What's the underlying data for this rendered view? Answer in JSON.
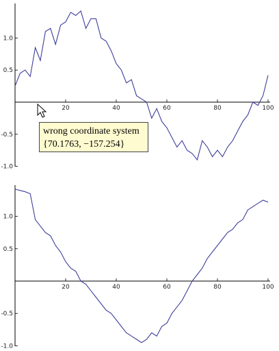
{
  "tooltip": {
    "line1": "wrong coordinate system",
    "line2": "{70.1763, −157.254}"
  },
  "cursor_icon": "arrow-pointer-icon",
  "colors": {
    "series": "#3d3d99",
    "axis": "#000000"
  },
  "chart_data": [
    {
      "type": "line",
      "xlim": [
        0,
        100
      ],
      "ylim": [
        -1.0,
        1.5
      ],
      "x_ticks": [
        20,
        40,
        60,
        80,
        100
      ],
      "x_tick_labels": [
        "20",
        "40",
        "60",
        "80",
        "100"
      ],
      "y_ticks": [
        1.0,
        0.5,
        -0.5,
        -1.0
      ],
      "y_tick_labels": [
        "1.0",
        "0.5",
        "-0.5",
        "-1.0"
      ],
      "series": [
        {
          "x": [
            0,
            2,
            4,
            6,
            8,
            10,
            12,
            14,
            16,
            18,
            20,
            22,
            24,
            26,
            28,
            30,
            32,
            34,
            36,
            38,
            40,
            42,
            44,
            46,
            48,
            50,
            52,
            54,
            56,
            58,
            60,
            62,
            64,
            66,
            68,
            70,
            72,
            74,
            76,
            78,
            80,
            82,
            84,
            86,
            88,
            90,
            92,
            94,
            96,
            98,
            100
          ],
          "y": [
            0.25,
            0.45,
            0.5,
            0.4,
            0.85,
            0.65,
            1.1,
            1.15,
            0.9,
            1.2,
            1.25,
            1.4,
            1.35,
            1.42,
            1.15,
            1.3,
            1.3,
            1.0,
            0.95,
            0.8,
            0.6,
            0.5,
            0.3,
            0.35,
            0.1,
            0.05,
            0.0,
            -0.25,
            -0.1,
            -0.3,
            -0.4,
            -0.55,
            -0.7,
            -0.6,
            -0.75,
            -0.8,
            -0.9,
            -0.6,
            -0.7,
            -0.85,
            -0.75,
            -0.85,
            -0.7,
            -0.6,
            -0.45,
            -0.3,
            -0.2,
            0.0,
            -0.05,
            0.1,
            0.42
          ]
        }
      ]
    },
    {
      "type": "line",
      "xlim": [
        0,
        100
      ],
      "ylim": [
        -1.0,
        1.5
      ],
      "x_ticks": [
        20,
        40,
        60,
        80,
        100
      ],
      "x_tick_labels": [
        "20",
        "40",
        "60",
        "80",
        "100"
      ],
      "y_ticks": [
        1.0,
        0.5,
        -0.5,
        -1.0
      ],
      "y_tick_labels": [
        "1.0",
        "0.5",
        "-0.5",
        "-1.0"
      ],
      "series": [
        {
          "x": [
            0,
            2,
            4,
            6,
            8,
            10,
            12,
            14,
            16,
            18,
            20,
            22,
            24,
            26,
            28,
            30,
            32,
            34,
            36,
            38,
            40,
            42,
            44,
            46,
            48,
            50,
            52,
            54,
            56,
            58,
            60,
            62,
            64,
            66,
            68,
            70,
            72,
            74,
            76,
            78,
            80,
            82,
            84,
            86,
            88,
            90,
            92,
            94,
            96,
            98,
            100
          ],
          "y": [
            1.42,
            1.4,
            1.38,
            1.35,
            0.95,
            0.85,
            0.75,
            0.7,
            0.55,
            0.45,
            0.3,
            0.2,
            0.15,
            0.0,
            -0.05,
            -0.15,
            -0.25,
            -0.35,
            -0.45,
            -0.5,
            -0.6,
            -0.7,
            -0.8,
            -0.85,
            -0.9,
            -0.95,
            -0.9,
            -0.8,
            -0.85,
            -0.7,
            -0.65,
            -0.5,
            -0.4,
            -0.3,
            -0.15,
            0.0,
            0.1,
            0.2,
            0.35,
            0.45,
            0.55,
            0.65,
            0.75,
            0.8,
            0.9,
            0.95,
            1.1,
            1.15,
            1.2,
            1.25,
            1.22
          ]
        }
      ]
    }
  ]
}
